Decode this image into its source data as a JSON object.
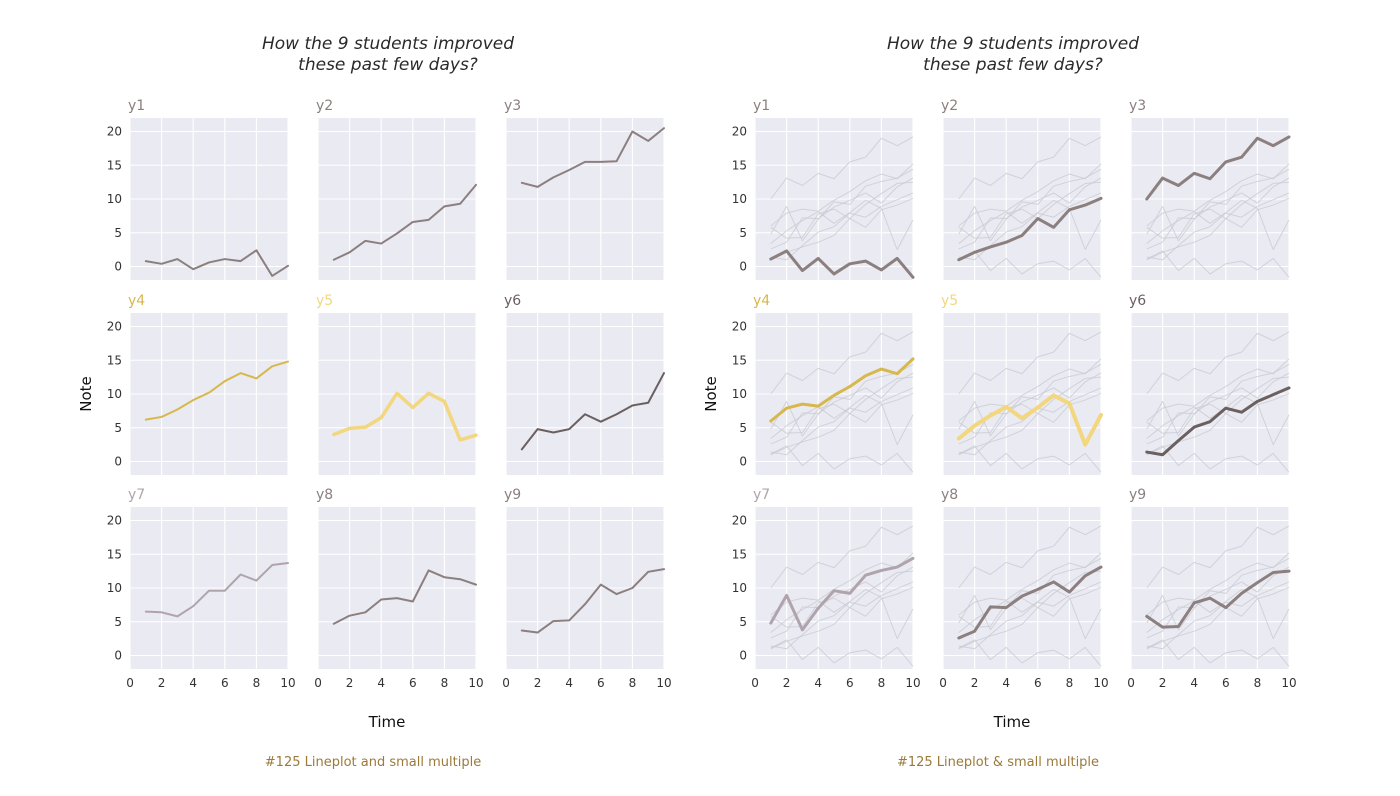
{
  "chart_data": [
    {
      "type": "line",
      "title": "How the 9 students improved these past few days?",
      "title_lines": [
        "How the 9 students improved",
        "these past few days?"
      ],
      "caption": "#125 Lineplot and small multiple",
      "xlabel": "Time",
      "ylabel": "Note",
      "xlim": [
        0,
        10
      ],
      "ylim": [
        -2,
        22
      ],
      "x_ticks": [
        "0",
        "2",
        "4",
        "6",
        "8",
        "10"
      ],
      "y_ticks": [
        "0",
        "5",
        "10",
        "15",
        "20"
      ],
      "grid": true,
      "show_background_series": false,
      "x": [
        1,
        2,
        3,
        4,
        5,
        6,
        7,
        8,
        9,
        10
      ],
      "series": [
        {
          "name": "y1",
          "color": "#8c7f7f",
          "width": 2,
          "values": [
            0.8,
            0.4,
            1.1,
            -0.4,
            0.6,
            1.1,
            0.8,
            2.4,
            -1.4,
            0.1
          ]
        },
        {
          "name": "y2",
          "color": "#8c7f7f",
          "width": 2,
          "values": [
            1.0,
            2.1,
            3.8,
            3.4,
            4.9,
            6.6,
            6.9,
            8.9,
            9.3,
            12.1
          ]
        },
        {
          "name": "y3",
          "color": "#8c7f7f",
          "width": 2,
          "values": [
            12.4,
            11.8,
            13.2,
            14.3,
            15.5,
            15.5,
            15.6,
            20.0,
            18.6,
            20.5
          ]
        },
        {
          "name": "y4",
          "color": "#d6b84c",
          "width": 2,
          "values": [
            6.2,
            6.6,
            7.7,
            9.1,
            10.2,
            11.9,
            13.1,
            12.3,
            14.1,
            14.8
          ]
        },
        {
          "name": "y5",
          "color": "#f2d77e",
          "width": 3.5,
          "values": [
            4.0,
            4.9,
            5.1,
            6.5,
            10.1,
            8.0,
            10.1,
            8.9,
            3.2,
            3.9
          ]
        },
        {
          "name": "y6",
          "color": "#6b6060",
          "width": 2,
          "values": [
            1.8,
            4.8,
            4.3,
            4.8,
            7.0,
            5.9,
            7.0,
            8.3,
            8.7,
            13.1
          ]
        },
        {
          "name": "y7",
          "color": "#b0a4ac",
          "width": 2,
          "values": [
            6.5,
            6.4,
            5.8,
            7.3,
            9.6,
            9.6,
            12.0,
            11.1,
            13.4,
            13.7
          ]
        },
        {
          "name": "y8",
          "color": "#8c7f7f",
          "width": 2,
          "values": [
            4.7,
            5.9,
            6.4,
            8.3,
            8.5,
            8.0,
            12.6,
            11.6,
            11.3,
            10.5
          ]
        },
        {
          "name": "y9",
          "color": "#8c7f7f",
          "width": 2,
          "values": [
            3.7,
            3.4,
            5.1,
            5.2,
            7.6,
            10.5,
            9.1,
            10.0,
            12.4,
            12.8
          ]
        }
      ]
    },
    {
      "type": "line",
      "title": "How the 9 students improved these past few days?",
      "title_lines": [
        "How the 9 students improved",
        "these past few days?"
      ],
      "caption": "#125 Lineplot & small multiple",
      "xlabel": "Time",
      "ylabel": "Note",
      "xlim": [
        0,
        10
      ],
      "ylim": [
        -2,
        22
      ],
      "x_ticks": [
        "0",
        "2",
        "4",
        "6",
        "8",
        "10"
      ],
      "y_ticks": [
        "0",
        "5",
        "10",
        "15",
        "20"
      ],
      "grid": true,
      "show_background_series": true,
      "x": [
        1,
        2,
        3,
        4,
        5,
        6,
        7,
        8,
        9,
        10
      ],
      "series": [
        {
          "name": "y1",
          "color": "#8c7f7f",
          "width": 3,
          "values": [
            1.1,
            2.3,
            -0.6,
            1.2,
            -1.1,
            0.4,
            0.8,
            -0.5,
            1.2,
            -1.6
          ]
        },
        {
          "name": "y2",
          "color": "#8c7f7f",
          "width": 3,
          "values": [
            1.0,
            2.1,
            2.9,
            3.6,
            4.6,
            7.1,
            5.8,
            8.4,
            9.1,
            10.1
          ]
        },
        {
          "name": "y3",
          "color": "#8c7f7f",
          "width": 3,
          "values": [
            10.0,
            13.1,
            12.0,
            13.8,
            13.0,
            15.5,
            16.2,
            19.0,
            17.9,
            19.2
          ]
        },
        {
          "name": "y4",
          "color": "#d6b84c",
          "width": 3,
          "values": [
            6.0,
            7.9,
            8.5,
            8.2,
            9.8,
            11.1,
            12.7,
            13.7,
            13.0,
            15.2
          ]
        },
        {
          "name": "y5",
          "color": "#f2d77e",
          "width": 4,
          "values": [
            3.4,
            5.3,
            6.8,
            8.1,
            6.4,
            8.0,
            9.8,
            8.6,
            2.5,
            6.9
          ]
        },
        {
          "name": "y6",
          "color": "#6b6060",
          "width": 3,
          "values": [
            1.4,
            1.0,
            3.1,
            5.1,
            5.9,
            7.9,
            7.3,
            8.9,
            9.9,
            10.9
          ]
        },
        {
          "name": "y7",
          "color": "#b0a4ac",
          "width": 3,
          "values": [
            4.8,
            8.9,
            3.8,
            7.0,
            9.6,
            9.2,
            11.9,
            12.6,
            13.1,
            14.4
          ]
        },
        {
          "name": "y8",
          "color": "#8c7f7f",
          "width": 3,
          "values": [
            2.6,
            3.6,
            7.2,
            7.1,
            8.8,
            9.8,
            10.9,
            9.4,
            11.8,
            13.1
          ]
        },
        {
          "name": "y9",
          "color": "#8c7f7f",
          "width": 3,
          "values": [
            5.8,
            4.2,
            4.3,
            7.8,
            8.5,
            7.1,
            9.2,
            10.8,
            12.3,
            12.5
          ]
        }
      ]
    }
  ]
}
